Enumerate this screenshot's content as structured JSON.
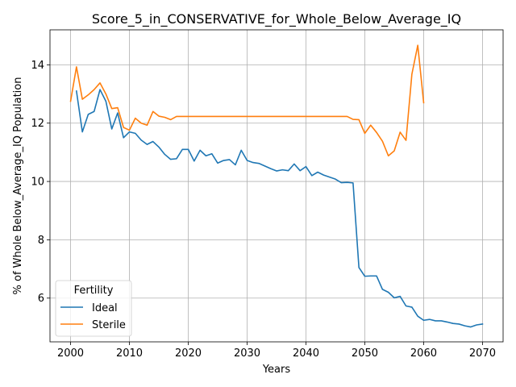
{
  "chart_data": {
    "type": "line",
    "title": "Score_5_in_CONSERVATIVE_for_Whole_Below_Average_IQ",
    "xlabel": "Years",
    "ylabel": "% of Whole Below_Average_IQ Population",
    "xlim": [
      1996.5,
      2073.5
    ],
    "ylim": [
      4.5,
      15.2
    ],
    "xticks": [
      2000,
      2010,
      2020,
      2030,
      2040,
      2050,
      2060,
      2070
    ],
    "yticks": [
      6,
      8,
      10,
      12,
      14
    ],
    "grid": true,
    "legend": {
      "title": "Fertility",
      "placement": "lower-left"
    },
    "series": [
      {
        "name": "Ideal",
        "color": "#1f77b4",
        "x": [
          2001,
          2002,
          2003,
          2004,
          2005,
          2006,
          2007,
          2008,
          2009,
          2010,
          2011,
          2012,
          2013,
          2014,
          2015,
          2016,
          2017,
          2018,
          2019,
          2020,
          2021,
          2022,
          2023,
          2024,
          2025,
          2026,
          2027,
          2028,
          2029,
          2030,
          2031,
          2032,
          2033,
          2034,
          2035,
          2036,
          2037,
          2038,
          2039,
          2040,
          2041,
          2042,
          2043,
          2044,
          2045,
          2046,
          2047,
          2048,
          2049,
          2050,
          2051,
          2052,
          2053,
          2054,
          2055,
          2056,
          2057,
          2058,
          2059,
          2060,
          2061,
          2062,
          2063,
          2064,
          2065,
          2066,
          2067,
          2068,
          2069,
          2070
        ],
        "values": [
          13.1,
          11.7,
          12.3,
          12.4,
          13.15,
          12.75,
          11.8,
          12.35,
          11.5,
          11.7,
          11.65,
          11.42,
          11.27,
          11.37,
          11.18,
          10.93,
          10.76,
          10.78,
          11.1,
          11.1,
          10.7,
          11.07,
          10.88,
          10.95,
          10.63,
          10.72,
          10.75,
          10.57,
          11.07,
          10.72,
          10.65,
          10.62,
          10.53,
          10.44,
          10.36,
          10.4,
          10.37,
          10.6,
          10.37,
          10.51,
          10.2,
          10.32,
          10.22,
          10.15,
          10.08,
          9.96,
          9.97,
          9.95,
          7.05,
          6.75,
          6.76,
          6.76,
          6.3,
          6.2,
          6.01,
          6.06,
          5.73,
          5.69,
          5.38,
          5.24,
          5.27,
          5.22,
          5.22,
          5.18,
          5.13,
          5.11,
          5.05,
          5.01,
          5.08,
          5.11
        ]
      },
      {
        "name": "Sterile",
        "color": "#ff7f0e",
        "x": [
          2000,
          2001,
          2002,
          2003,
          2004,
          2005,
          2006,
          2007,
          2008,
          2009,
          2010,
          2011,
          2012,
          2013,
          2014,
          2015,
          2016,
          2017,
          2018,
          2019,
          2020,
          2021,
          2022,
          2023,
          2024,
          2025,
          2026,
          2027,
          2028,
          2029,
          2030,
          2031,
          2032,
          2033,
          2034,
          2035,
          2036,
          2037,
          2038,
          2039,
          2040,
          2041,
          2042,
          2043,
          2044,
          2045,
          2046,
          2047,
          2048,
          2049,
          2050,
          2051,
          2052,
          2053,
          2054,
          2055,
          2056,
          2057,
          2058,
          2059,
          2060
        ],
        "values": [
          12.75,
          13.93,
          12.82,
          12.97,
          13.15,
          13.38,
          13.0,
          12.5,
          12.53,
          11.85,
          11.76,
          12.17,
          12.0,
          11.93,
          12.4,
          12.24,
          12.2,
          12.12,
          12.23,
          12.23,
          12.23,
          12.23,
          12.23,
          12.23,
          12.23,
          12.23,
          12.23,
          12.23,
          12.23,
          12.23,
          12.23,
          12.23,
          12.23,
          12.23,
          12.23,
          12.23,
          12.23,
          12.23,
          12.23,
          12.23,
          12.23,
          12.23,
          12.23,
          12.23,
          12.23,
          12.23,
          12.23,
          12.23,
          12.13,
          12.12,
          11.65,
          11.93,
          11.68,
          11.38,
          10.88,
          11.05,
          11.69,
          11.41,
          13.68,
          14.67,
          12.7
        ]
      }
    ]
  }
}
